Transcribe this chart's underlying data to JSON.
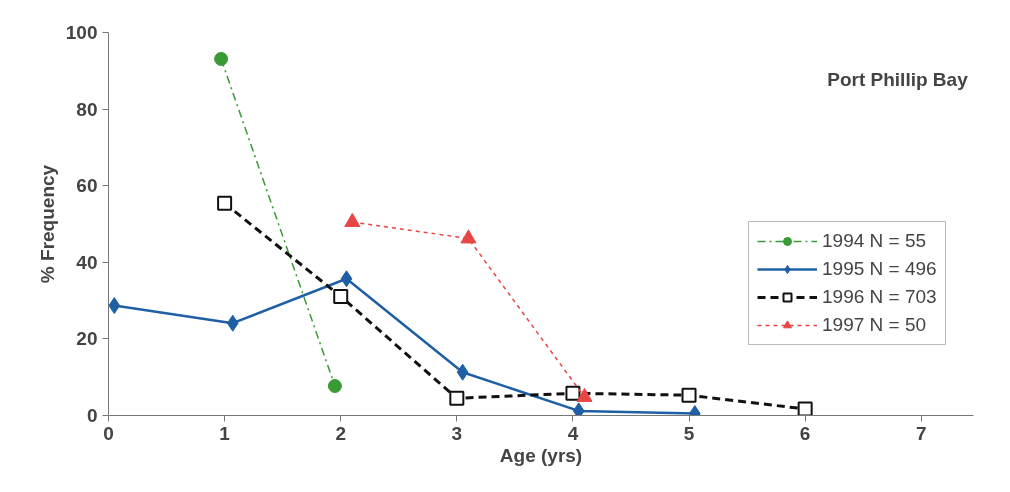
{
  "chart_data": {
    "type": "line",
    "title": "Port Phillip Bay",
    "xlabel": "Age (yrs)",
    "ylabel": "% Frequency",
    "xlim": [
      0,
      7.45
    ],
    "xticks": [
      0,
      1,
      2,
      3,
      4,
      5,
      6,
      7
    ],
    "ylim": [
      0,
      100
    ],
    "yticks": [
      0,
      20,
      40,
      60,
      80,
      100
    ],
    "grid": false,
    "legend": "right",
    "series": [
      {
        "name": "1994 N = 55",
        "color": "#3a9a36",
        "marker": "circle",
        "line_style": "dashdot",
        "x": [
          0.97,
          1.95
        ],
        "values": [
          93.1,
          7.7
        ]
      },
      {
        "name": "1995 N = 496",
        "color": "#1f5fa5",
        "marker": "diamond",
        "line_style": "solid",
        "x": [
          0.05,
          1.07,
          2.05,
          3.05,
          4.05,
          5.05
        ],
        "values": [
          28.7,
          24.1,
          35.7,
          11.3,
          1.2,
          0.5
        ]
      },
      {
        "name": "1996 N = 703",
        "color": "#111111",
        "marker": "square",
        "line_style": "dashed",
        "x": [
          1.0,
          2.0,
          3.0,
          4.0,
          5.0,
          6.0
        ],
        "values": [
          55.4,
          31.1,
          4.5,
          5.8,
          5.3,
          1.7
        ]
      },
      {
        "name": "1997 N = 50",
        "color": "#e84545",
        "marker": "triangle",
        "line_style": "dotted",
        "x": [
          2.1,
          3.1,
          4.1
        ],
        "values": [
          50.5,
          46.2,
          4.8
        ]
      }
    ]
  }
}
